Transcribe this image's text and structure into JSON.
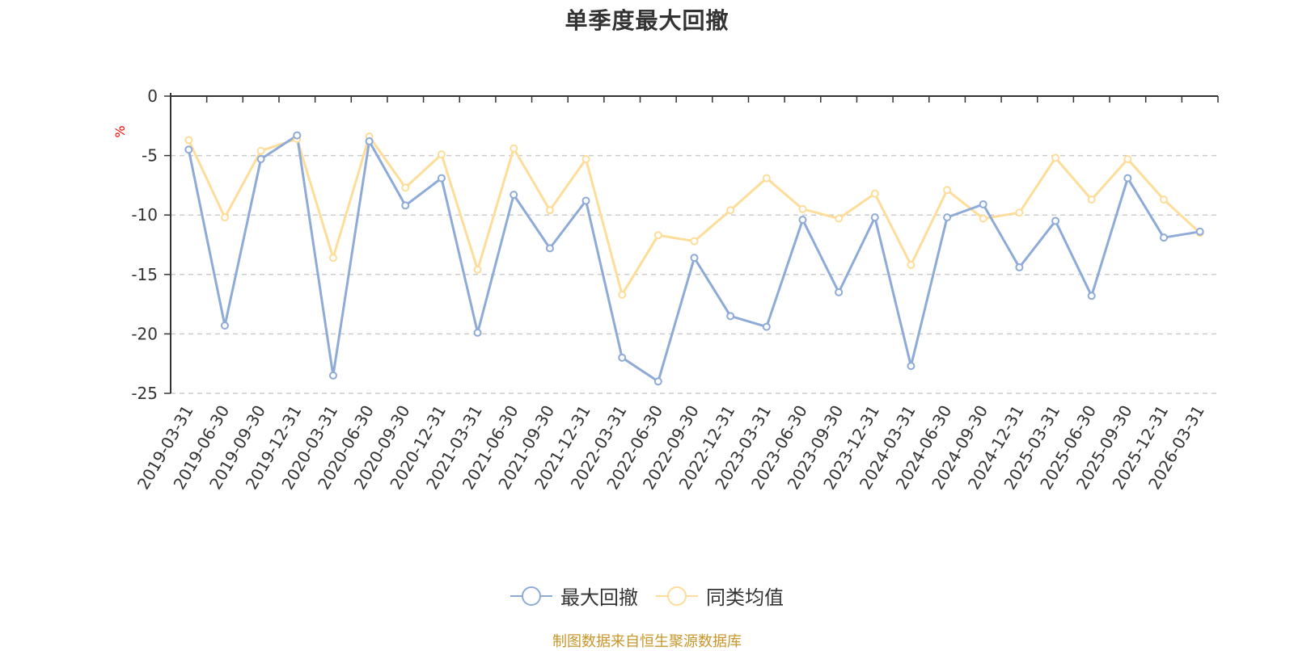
{
  "chart_data": {
    "type": "line",
    "title": "单季度最大回撤",
    "ylabel": "%",
    "xlabel": "",
    "ylim": [
      -25,
      0
    ],
    "yticks": [
      0,
      -5,
      -10,
      -15,
      -20,
      -25
    ],
    "grid": true,
    "legend_position": "bottom",
    "categories": [
      "2019-03-31",
      "2019-06-30",
      "2019-09-30",
      "2019-12-31",
      "2020-03-31",
      "2020-06-30",
      "2020-09-30",
      "2020-12-31",
      "2021-03-31",
      "2021-06-30",
      "2021-09-30",
      "2021-12-31",
      "2022-03-31",
      "2022-06-30",
      "2022-09-30",
      "2022-12-31",
      "2023-03-31",
      "2023-06-30",
      "2023-09-30",
      "2023-12-31",
      "2024-03-31",
      "2024-06-30",
      "2024-09-30",
      "2024-12-31",
      "2025-03-31",
      "2025-06-30",
      "2025-09-30",
      "2025-12-31",
      "2026-03-31"
    ],
    "series": [
      {
        "name": "最大回撤",
        "color": "#8eabd8",
        "values": [
          -4.5,
          -19.3,
          -5.3,
          -3.3,
          -23.5,
          -3.8,
          -9.2,
          -6.9,
          -19.9,
          -8.3,
          -12.8,
          -8.8,
          -22.0,
          -24.0,
          -13.6,
          -18.5,
          -19.4,
          -10.4,
          -16.5,
          -10.2,
          -22.7,
          -10.2,
          -9.1,
          -14.4,
          -10.5,
          -16.8,
          -6.9,
          -11.9,
          -11.4
        ]
      },
      {
        "name": "同类均值",
        "color": "#fddd99",
        "values": [
          -3.7,
          -10.2,
          -4.6,
          -3.6,
          -13.6,
          -3.4,
          -7.7,
          -4.9,
          -14.6,
          -4.4,
          -9.6,
          -5.3,
          -16.7,
          -11.7,
          -12.2,
          -9.6,
          -6.9,
          -9.5,
          -10.3,
          -8.2,
          -14.2,
          -7.9,
          -10.3,
          -9.8,
          -5.2,
          -8.7,
          -5.3,
          -8.7,
          -11.5
        ]
      }
    ]
  },
  "source_note": "制图数据来自恒生聚源数据库"
}
